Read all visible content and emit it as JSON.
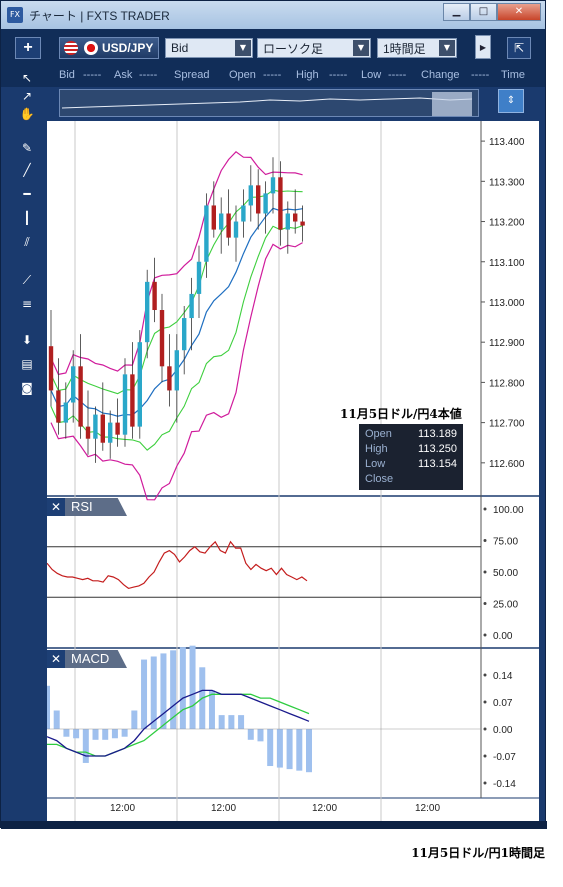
{
  "window": {
    "title": "チャート | FXTS TRADER",
    "icon": "fx-app-icon"
  },
  "toolbar": {
    "add_label": "+",
    "pair": "USD/JPY",
    "price_type": "Bid",
    "chart_type": "ローソク足",
    "timeframe": "1時間足"
  },
  "quote_row": [
    "Bid",
    "-----",
    "Ask",
    "-----",
    "Spread",
    "Open",
    "-----",
    "High",
    "-----",
    "Low",
    "-----",
    "Change",
    "-----",
    "Time"
  ],
  "price_axis": [
    "113.400",
    "113.300",
    "113.200",
    "113.100",
    "113.000",
    "112.900",
    "112.800",
    "112.700",
    "112.600"
  ],
  "ohlc": {
    "title": "11月5日ドル/円4本値",
    "rows": [
      {
        "label": "Open",
        "value": "113.189"
      },
      {
        "label": "High",
        "value": "113.250"
      },
      {
        "label": "Low",
        "value": "113.154"
      },
      {
        "label": "Close",
        "value": ""
      }
    ]
  },
  "rsi": {
    "label": "RSI",
    "axis": [
      "100.00",
      "75.00",
      "50.00",
      "25.00",
      "0.00"
    ]
  },
  "macd": {
    "label": "MACD",
    "axis": [
      "0.14",
      "0.07",
      "0.00",
      "-0.07",
      "-0.14"
    ]
  },
  "time_axis": [
    "12:00",
    "12:00",
    "12:00",
    "12:00"
  ],
  "caption": "11月5日ドル/円1時間足",
  "colors": {
    "bull": "#2aa7c9",
    "bear": "#b01f1f",
    "mid_band": "#1f6fc1",
    "inner_band": "#3ecf3e",
    "outer_band": "#d01c9c",
    "rsi": "#c41d1d",
    "macd": "#1a1a8c",
    "signal": "#2ecc40",
    "hist": "#9fc0ee"
  },
  "chart_data": {
    "type": "line",
    "candles": [
      [
        112.89,
        112.98,
        112.74,
        112.78
      ],
      [
        112.78,
        112.86,
        112.67,
        112.7
      ],
      [
        112.7,
        112.8,
        112.66,
        112.75
      ],
      [
        112.75,
        112.88,
        112.7,
        112.84
      ],
      [
        112.84,
        112.92,
        112.66,
        112.69
      ],
      [
        112.69,
        112.78,
        112.62,
        112.66
      ],
      [
        112.66,
        112.74,
        112.6,
        112.72
      ],
      [
        112.72,
        112.8,
        112.63,
        112.65
      ],
      [
        112.65,
        112.73,
        112.61,
        112.7
      ],
      [
        112.7,
        112.76,
        112.64,
        112.67
      ],
      [
        112.67,
        112.86,
        112.64,
        112.82
      ],
      [
        112.82,
        112.9,
        112.66,
        112.69
      ],
      [
        112.69,
        112.93,
        112.66,
        112.9
      ],
      [
        112.9,
        113.08,
        112.86,
        113.05
      ],
      [
        113.05,
        113.11,
        112.95,
        112.98
      ],
      [
        112.98,
        113.02,
        112.8,
        112.84
      ],
      [
        112.84,
        112.92,
        112.74,
        112.78
      ],
      [
        112.78,
        112.92,
        112.7,
        112.88
      ],
      [
        112.88,
        112.99,
        112.82,
        112.96
      ],
      [
        112.96,
        113.06,
        112.88,
        113.02
      ],
      [
        113.02,
        113.14,
        112.96,
        113.1
      ],
      [
        113.1,
        113.27,
        113.06,
        113.24
      ],
      [
        113.24,
        113.3,
        113.16,
        113.18
      ],
      [
        113.18,
        113.26,
        113.12,
        113.22
      ],
      [
        113.22,
        113.28,
        113.14,
        113.16
      ],
      [
        113.16,
        113.24,
        113.1,
        113.2
      ],
      [
        113.2,
        113.28,
        113.16,
        113.24
      ],
      [
        113.24,
        113.34,
        113.2,
        113.29
      ],
      [
        113.29,
        113.33,
        113.18,
        113.22
      ],
      [
        113.22,
        113.3,
        113.17,
        113.27
      ],
      [
        113.27,
        113.36,
        113.22,
        113.31
      ],
      [
        113.31,
        113.35,
        113.14,
        113.18
      ],
      [
        113.18,
        113.25,
        113.12,
        113.22
      ],
      [
        113.22,
        113.28,
        113.17,
        113.2
      ],
      [
        113.2,
        113.24,
        113.15,
        113.19
      ]
    ],
    "rsi_values": [
      57,
      52,
      49,
      47,
      46,
      46,
      45,
      44,
      45,
      43,
      43,
      42,
      47,
      46,
      44,
      40,
      37,
      38,
      39,
      41,
      46,
      50,
      58,
      65,
      67,
      64,
      58,
      62,
      67,
      70,
      66,
      65,
      70,
      74,
      67,
      65,
      74,
      69,
      69,
      57,
      52,
      56,
      53,
      51,
      53,
      48,
      53,
      48,
      46,
      44,
      46,
      43
    ],
    "macd_values": [
      -0.02,
      -0.03,
      -0.05,
      -0.06,
      -0.07,
      -0.07,
      -0.07,
      -0.06,
      -0.05,
      -0.03,
      0.0,
      0.02,
      0.04,
      0.06,
      0.08,
      0.09,
      0.1,
      0.1,
      0.09,
      0.09,
      0.09,
      0.08,
      0.07,
      0.06,
      0.05,
      0.04,
      0.03,
      0.02
    ],
    "signal_values": [
      -0.04,
      -0.04,
      -0.05,
      -0.06,
      -0.06,
      -0.07,
      -0.07,
      -0.06,
      -0.05,
      -0.04,
      -0.03,
      -0.01,
      0.01,
      0.03,
      0.05,
      0.06,
      0.08,
      0.09,
      0.09,
      0.09,
      0.09,
      0.09,
      0.08,
      0.08,
      0.07,
      0.06,
      0.05,
      0.04
    ],
    "ylim_price": [
      112.52,
      113.45
    ],
    "ylim_rsi": [
      0,
      100
    ],
    "ylim_macd": [
      -0.14,
      0.14
    ]
  }
}
